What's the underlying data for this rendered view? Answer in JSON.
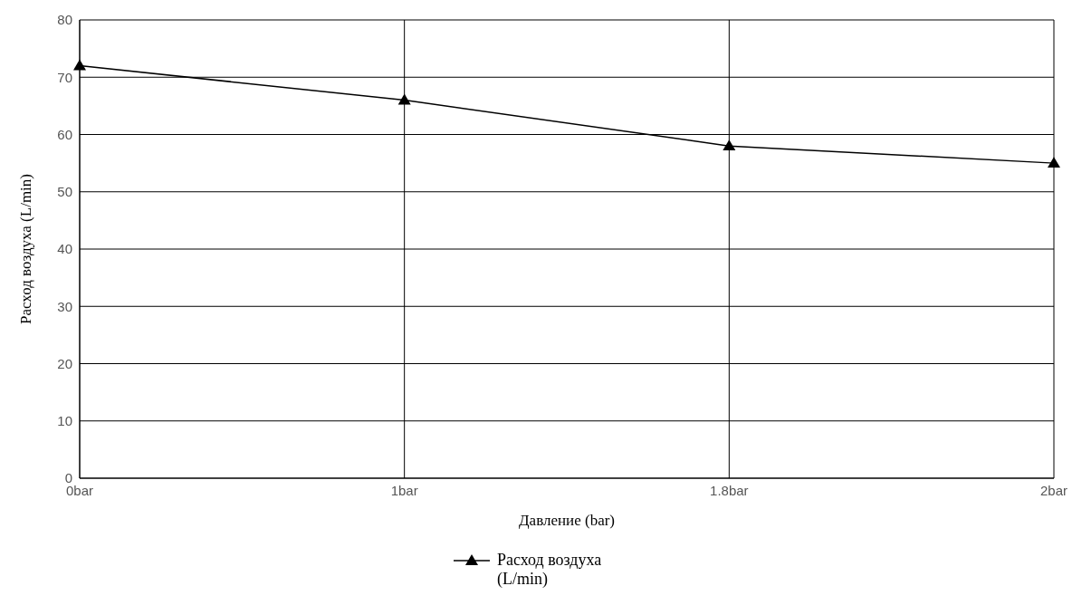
{
  "chart_data": {
    "type": "line",
    "xlabel": "Давление (bar)",
    "ylabel": "Расход воздуха (L/min)",
    "categories": [
      "0bar",
      "1bar",
      "1.8bar",
      "2bar"
    ],
    "series": [
      {
        "name": "Расход воздуха (L/min)",
        "color": "#000000",
        "values": [
          72,
          66,
          58,
          55
        ]
      }
    ],
    "ylim": [
      0,
      80
    ],
    "yticks": [
      0,
      10,
      20,
      30,
      40,
      50,
      60,
      70,
      80
    ],
    "grid": true,
    "legend": "bottom",
    "marker": "triangle",
    "line_style": "solid"
  }
}
